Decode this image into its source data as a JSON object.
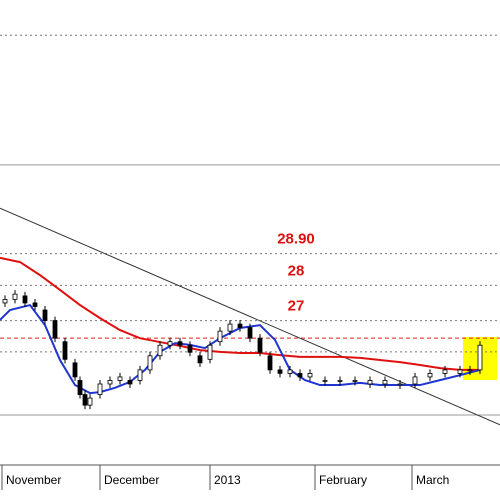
{
  "chart_data": {
    "type": "candlestick",
    "xlim": [
      0,
      100
    ],
    "ylim": [
      22.9,
      36.1
    ],
    "xticks": [
      {
        "value": 0.4,
        "label": "November"
      },
      {
        "value": 20,
        "label": "December"
      },
      {
        "value": 42,
        "label": "2013"
      },
      {
        "value": 63,
        "label": "February"
      },
      {
        "value": 82.4,
        "label": "March"
      }
    ],
    "levels": [
      {
        "value": 28.9,
        "label": "28.90"
      },
      28,
      27
    ],
    "level_color": "#e01010",
    "lines": [
      {
        "value": 35.1,
        "style": "dotted",
        "color": "#777777"
      },
      {
        "value": 31.42,
        "style": "solid",
        "color": "#999999"
      },
      {
        "value": 26.5,
        "style": "dashed",
        "color": "#e02020"
      },
      {
        "value": 26.11,
        "style": "dotted",
        "color": "#777777"
      },
      {
        "value": 24.32,
        "style": "solid",
        "color": "#999999"
      }
    ],
    "candles": {
      "x": [
        1,
        3,
        5,
        7,
        9,
        11,
        13,
        15,
        16,
        17,
        18,
        20,
        22,
        24,
        26,
        28,
        30,
        32,
        34,
        36,
        38,
        40,
        42,
        44,
        46,
        48,
        50,
        52,
        54,
        56,
        58,
        60,
        62,
        65,
        68,
        71,
        74,
        77,
        80,
        83,
        86,
        89,
        92,
        94,
        96
      ],
      "open": [
        27.5,
        27.6,
        27.7,
        27.5,
        27.3,
        27.0,
        26.4,
        25.8,
        25.3,
        24.9,
        24.6,
        24.9,
        25.2,
        25.3,
        25.3,
        25.3,
        25.6,
        26.0,
        26.3,
        26.4,
        26.3,
        26.0,
        25.9,
        26.4,
        26.7,
        26.9,
        26.8,
        26.5,
        26.0,
        25.6,
        25.5,
        25.5,
        25.4,
        25.3,
        25.3,
        25.3,
        25.2,
        25.2,
        25.2,
        25.2,
        25.4,
        25.5,
        25.5,
        25.6,
        25.6
      ],
      "close": [
        27.6,
        27.75,
        27.5,
        27.4,
        27.0,
        26.5,
        25.9,
        25.4,
        24.9,
        24.6,
        24.8,
        25.2,
        25.3,
        25.4,
        25.2,
        25.6,
        26.0,
        26.3,
        26.4,
        26.3,
        26.1,
        25.8,
        26.3,
        26.7,
        26.9,
        26.8,
        26.5,
        26.1,
        25.6,
        25.5,
        25.6,
        25.4,
        25.5,
        25.3,
        25.3,
        25.3,
        25.3,
        25.3,
        25.2,
        25.4,
        25.5,
        25.6,
        25.6,
        25.6,
        26.3
      ]
    },
    "series": [
      {
        "color": "#e01010",
        "x": [
          0,
          4,
          8,
          12,
          16,
          20,
          24,
          28,
          32,
          36,
          40,
          44,
          48,
          52,
          56,
          60,
          64,
          68,
          72,
          76,
          80,
          84,
          88,
          92,
          96
        ],
        "values": [
          28.78,
          28.66,
          28.29,
          27.87,
          27.44,
          27.07,
          26.73,
          26.5,
          26.39,
          26.28,
          26.16,
          26.11,
          26.08,
          26.08,
          26.02,
          25.97,
          25.97,
          25.97,
          25.94,
          25.88,
          25.82,
          25.74,
          25.65,
          25.6,
          25.6
        ]
      },
      {
        "color": "#1f35d0",
        "x": [
          0,
          2,
          6,
          9,
          12,
          15,
          18,
          20,
          23,
          26,
          29,
          32,
          35,
          38,
          41,
          44,
          48,
          52,
          55,
          58,
          61,
          64,
          68,
          72,
          76,
          80,
          84,
          88,
          92,
          96
        ],
        "values": [
          27.02,
          27.3,
          27.44,
          26.87,
          25.88,
          25.17,
          24.94,
          24.97,
          25.09,
          25.26,
          25.6,
          26.11,
          26.36,
          26.31,
          26.22,
          26.5,
          26.79,
          26.87,
          26.45,
          25.6,
          25.31,
          25.17,
          25.17,
          25.23,
          25.17,
          25.17,
          25.17,
          25.31,
          25.45,
          25.6
        ]
      }
    ],
    "trendline": {
      "x": [
        0,
        100
      ],
      "values": [
        30.19,
        24.04
      ],
      "color": "#333333"
    }
  }
}
